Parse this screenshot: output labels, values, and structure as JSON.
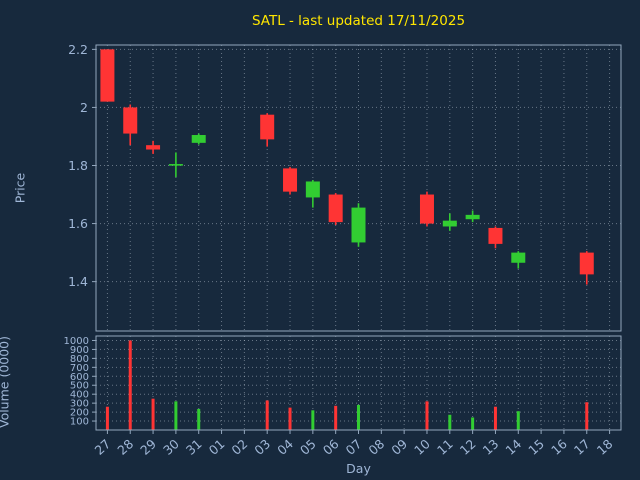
{
  "colors": {
    "background": "#17293d",
    "grid": "#c8d4e0",
    "spine": "#93a7bd",
    "tick_text": "#9fb6d6",
    "title": "#ffe600",
    "up": "#32cd32",
    "down": "#ff3434"
  },
  "chart_data": [
    {
      "type": "candlestick",
      "title": "SATL - last updated 17/11/2025",
      "xlabel": "Day",
      "ylabel": "Price",
      "ylim": [
        1.23,
        2.215
      ],
      "grid": true,
      "x_categories": [
        "27",
        "28",
        "29",
        "30",
        "31",
        "01",
        "02",
        "03",
        "04",
        "05",
        "06",
        "07",
        "08",
        "09",
        "10",
        "11",
        "12",
        "13",
        "14",
        "15",
        "16",
        "17",
        "18"
      ],
      "y_ticks": [
        {
          "label": "1.4",
          "value": 1.4
        },
        {
          "label": "1.6",
          "value": 1.6
        },
        {
          "label": "1.8",
          "value": 1.8
        },
        {
          "label": "2",
          "value": 2.0
        },
        {
          "label": "2.2",
          "value": 2.2
        }
      ],
      "candles": [
        {
          "x": "27",
          "open": 2.2,
          "high": 2.2,
          "low": 2.02,
          "close": 2.02
        },
        {
          "x": "28",
          "open": 2.0,
          "high": 2.01,
          "low": 1.87,
          "close": 1.91
        },
        {
          "x": "29",
          "open": 1.87,
          "high": 1.885,
          "low": 1.84,
          "close": 1.855
        },
        {
          "x": "30",
          "open": 1.8,
          "high": 1.845,
          "low": 1.76,
          "close": 1.805
        },
        {
          "x": "31",
          "open": 1.878,
          "high": 1.91,
          "low": 1.872,
          "close": 1.905
        },
        {
          "x": "03",
          "open": 1.975,
          "high": 1.98,
          "low": 1.865,
          "close": 1.89
        },
        {
          "x": "04",
          "open": 1.79,
          "high": 1.795,
          "low": 1.7,
          "close": 1.71
        },
        {
          "x": "05",
          "open": 1.69,
          "high": 1.75,
          "low": 1.655,
          "close": 1.745
        },
        {
          "x": "06",
          "open": 1.7,
          "high": 1.705,
          "low": 1.595,
          "close": 1.605
        },
        {
          "x": "07",
          "open": 1.535,
          "high": 1.67,
          "low": 1.52,
          "close": 1.655
        },
        {
          "x": "10",
          "open": 1.7,
          "high": 1.71,
          "low": 1.59,
          "close": 1.6
        },
        {
          "x": "11",
          "open": 1.59,
          "high": 1.635,
          "low": 1.575,
          "close": 1.61
        },
        {
          "x": "12",
          "open": 1.615,
          "high": 1.645,
          "low": 1.605,
          "close": 1.63
        },
        {
          "x": "13",
          "open": 1.585,
          "high": 1.59,
          "low": 1.515,
          "close": 1.53
        },
        {
          "x": "14",
          "open": 1.465,
          "high": 1.505,
          "low": 1.445,
          "close": 1.5
        },
        {
          "x": "17",
          "open": 1.5,
          "high": 1.505,
          "low": 1.39,
          "close": 1.425
        }
      ]
    },
    {
      "type": "bar",
      "ylabel": "Volume (0000)",
      "ylim": [
        0,
        1050
      ],
      "grid": true,
      "y_ticks": [
        {
          "label": "100",
          "value": 100
        },
        {
          "label": "200",
          "value": 200
        },
        {
          "label": "300",
          "value": 300
        },
        {
          "label": "400",
          "value": 400
        },
        {
          "label": "500",
          "value": 500
        },
        {
          "label": "600",
          "value": 600
        },
        {
          "label": "700",
          "value": 700
        },
        {
          "label": "800",
          "value": 800
        },
        {
          "label": "900",
          "value": 900
        },
        {
          "label": "1000",
          "value": 1000
        }
      ],
      "bars": [
        {
          "x": "27",
          "value": 260,
          "direction": "down"
        },
        {
          "x": "28",
          "value": 1000,
          "direction": "down"
        },
        {
          "x": "29",
          "value": 350,
          "direction": "down"
        },
        {
          "x": "30",
          "value": 320,
          "direction": "up"
        },
        {
          "x": "31",
          "value": 235,
          "direction": "up"
        },
        {
          "x": "03",
          "value": 330,
          "direction": "down"
        },
        {
          "x": "04",
          "value": 250,
          "direction": "down"
        },
        {
          "x": "05",
          "value": 220,
          "direction": "up"
        },
        {
          "x": "06",
          "value": 270,
          "direction": "down"
        },
        {
          "x": "07",
          "value": 280,
          "direction": "up"
        },
        {
          "x": "10",
          "value": 320,
          "direction": "down"
        },
        {
          "x": "11",
          "value": 170,
          "direction": "up"
        },
        {
          "x": "12",
          "value": 140,
          "direction": "up"
        },
        {
          "x": "13",
          "value": 260,
          "direction": "down"
        },
        {
          "x": "14",
          "value": 210,
          "direction": "up"
        },
        {
          "x": "17",
          "value": 310,
          "direction": "down"
        }
      ]
    }
  ]
}
